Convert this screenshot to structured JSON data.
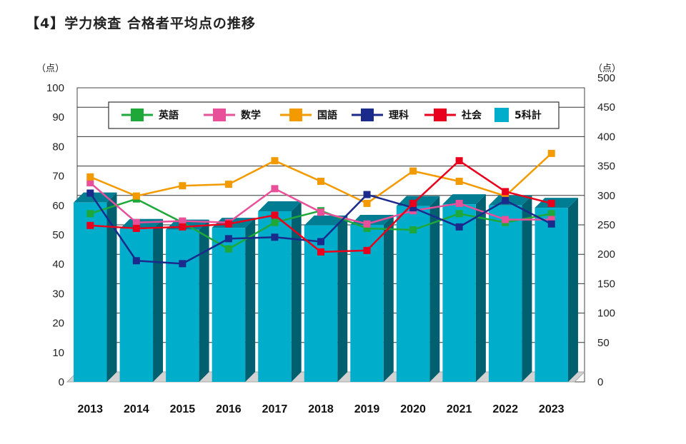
{
  "title": "【4】学力検査 合格者平均点の推移",
  "chart_data": {
    "type": "bar+line",
    "title": "【4】学力検査 合格者平均点の推移",
    "categories": [
      "2013",
      "2014",
      "2015",
      "2016",
      "2017",
      "2018",
      "2019",
      "2020",
      "2021",
      "2022",
      "2023"
    ],
    "y_left": {
      "unit": "（点）",
      "lim": [
        0,
        100
      ],
      "ticks": [
        0,
        10,
        20,
        30,
        40,
        50,
        60,
        70,
        80,
        90,
        100
      ]
    },
    "y_right": {
      "unit": "（点）",
      "lim": [
        0,
        500
      ],
      "ticks": [
        0,
        50,
        100,
        150,
        200,
        250,
        300,
        350,
        400,
        450,
        500
      ]
    },
    "grid": true,
    "legend": "top-center",
    "bars": {
      "name": "5科計",
      "axis": "right",
      "color": "#00aecb",
      "values": [
        305,
        260,
        259,
        262,
        290,
        266,
        267,
        299,
        302,
        300,
        296
      ]
    },
    "series": [
      {
        "name": "英語",
        "axis": "left",
        "color": "#1fa83a",
        "values": [
          55.5,
          60.5,
          52.5,
          43.5,
          52.5,
          56.5,
          50.5,
          50,
          55.5,
          52.5,
          55.5
        ]
      },
      {
        "name": "数学",
        "axis": "left",
        "color": "#e8509a",
        "values": [
          66,
          52.5,
          53,
          52.5,
          64,
          56,
          52,
          56.5,
          59,
          53.5,
          53.5
        ]
      },
      {
        "name": "国語",
        "axis": "left",
        "color": "#f39a00",
        "values": [
          68,
          61.5,
          65,
          65.5,
          73.5,
          66.5,
          59,
          70,
          66.5,
          61.5,
          76
        ]
      },
      {
        "name": "理科",
        "axis": "left",
        "color": "#1a2b8c",
        "values": [
          62.5,
          39.5,
          38.5,
          47,
          47.5,
          46,
          62,
          57.5,
          51,
          60,
          52
        ]
      },
      {
        "name": "社会",
        "axis": "left",
        "color": "#e8001c",
        "values": [
          51.5,
          50.5,
          51,
          52,
          55,
          42.5,
          43,
          59,
          73.5,
          63,
          59
        ]
      }
    ]
  }
}
